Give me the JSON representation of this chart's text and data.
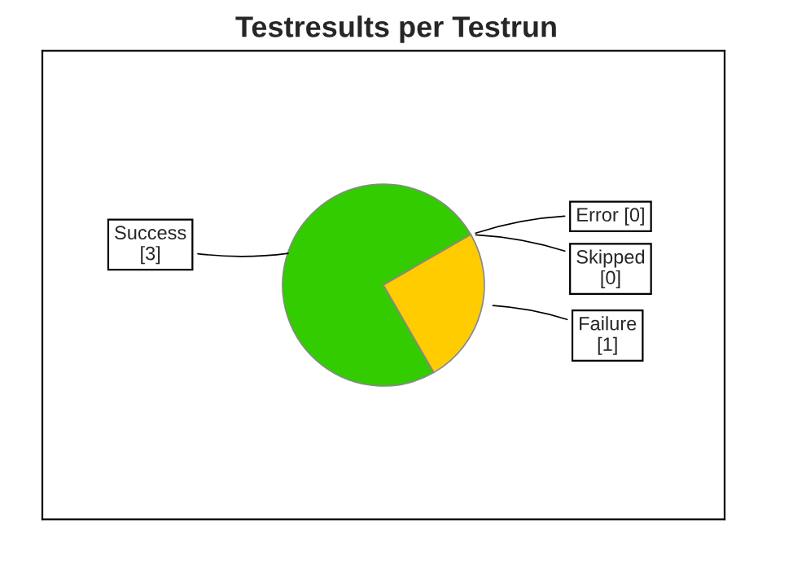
{
  "chart_data": {
    "type": "pie",
    "title": "Testresults per Testrun",
    "categories": [
      "Success",
      "Error",
      "Skipped",
      "Failure"
    ],
    "values": [
      3,
      0,
      0,
      1
    ],
    "colors": [
      "#33cc00",
      "#ff0000",
      "#999999",
      "#ffcc00"
    ],
    "value_labels": [
      "[3]",
      "[0]",
      "[0]",
      "[1]"
    ]
  }
}
